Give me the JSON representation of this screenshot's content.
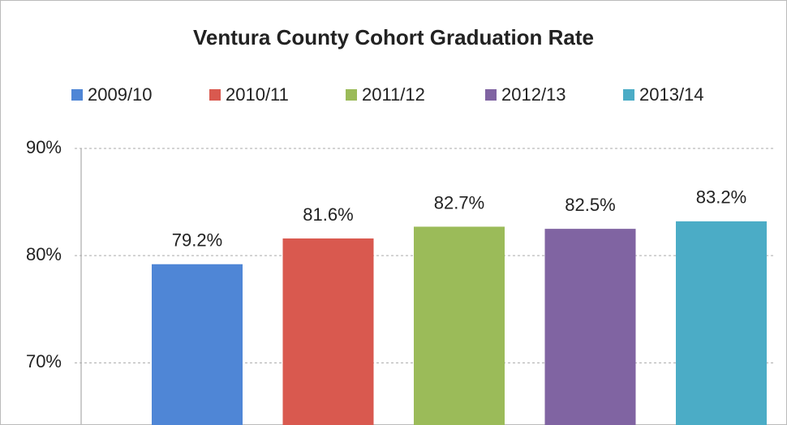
{
  "chart_data": {
    "type": "bar",
    "title": "Ventura County Cohort Graduation Rate",
    "series": [
      {
        "name": "2009/10",
        "color": "#4f86d6",
        "values": [
          79.2
        ],
        "value_labels": [
          "79.2%"
        ]
      },
      {
        "name": "2010/11",
        "color": "#d9594f",
        "values": [
          81.6
        ],
        "value_labels": [
          "81.6%"
        ]
      },
      {
        "name": "2011/12",
        "color": "#9bbb59",
        "values": [
          82.7
        ],
        "value_labels": [
          "82.7%"
        ]
      },
      {
        "name": "2012/13",
        "color": "#8064a2",
        "values": [
          82.5
        ],
        "value_labels": [
          "82.5%"
        ]
      },
      {
        "name": "2013/14",
        "color": "#4bacc6",
        "values": [
          83.2
        ],
        "value_labels": [
          "83.2%"
        ]
      }
    ],
    "ylim": [
      64.2,
      90
    ],
    "yticks": [
      {
        "value": 70,
        "label": "70%"
      },
      {
        "value": 80,
        "label": "80%"
      },
      {
        "value": 90,
        "label": "90%"
      }
    ],
    "grid": true,
    "legend": "top"
  }
}
